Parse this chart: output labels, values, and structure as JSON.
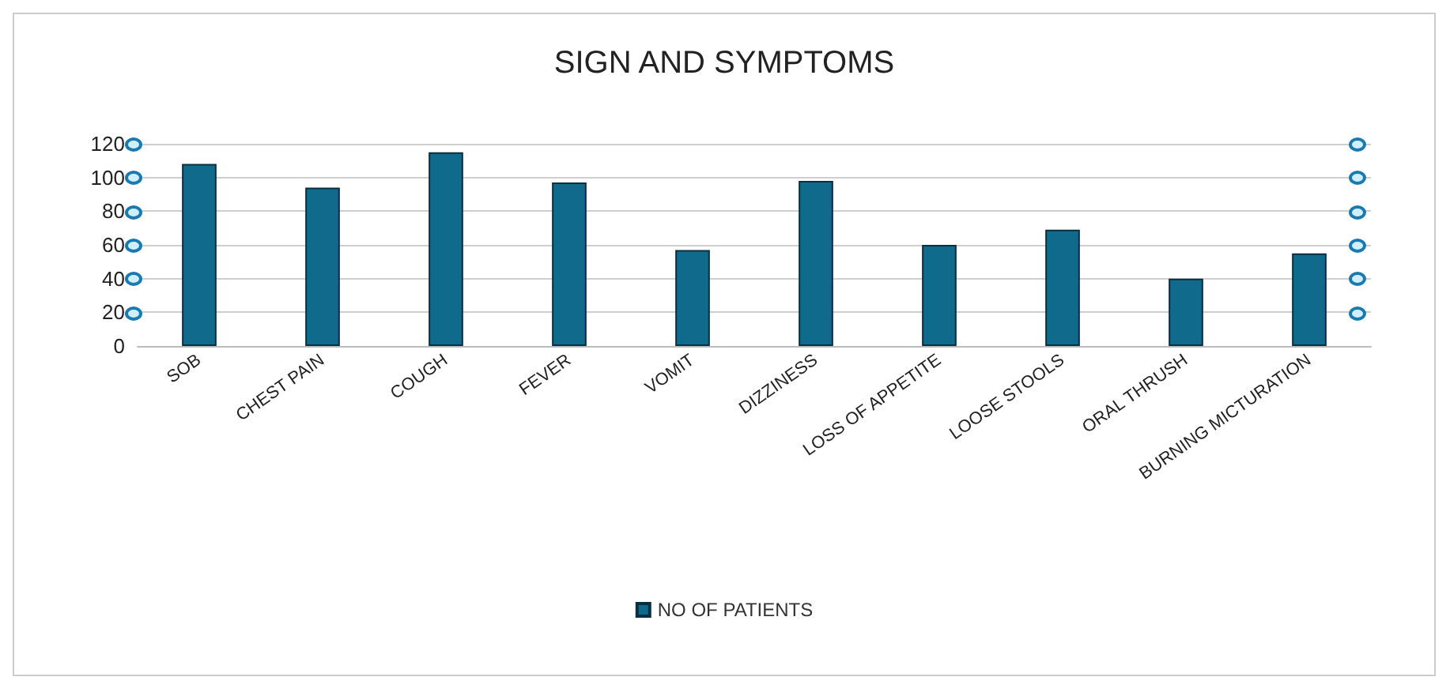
{
  "chart_data": {
    "type": "bar",
    "title": "SIGN AND SYMPTOMS",
    "categories": [
      "SOB",
      "CHEST PAIN",
      "COUGH",
      "FEVER",
      "VOMIT",
      "DIZZINESS",
      "LOSS OF APPETITE",
      "LOOSE STOOLS",
      "ORAL THRUSH",
      "BURNING MICTURATION"
    ],
    "series": [
      {
        "name": "NO OF PATIENTS",
        "color": "#0f6a8b",
        "values": [
          108,
          94,
          115,
          97,
          57,
          98,
          60,
          69,
          40,
          55
        ]
      }
    ],
    "ylim": [
      0,
      120
    ],
    "yticks": [
      0,
      20,
      40,
      60,
      80,
      100,
      120
    ],
    "grid": "y",
    "legend": "bottom"
  }
}
